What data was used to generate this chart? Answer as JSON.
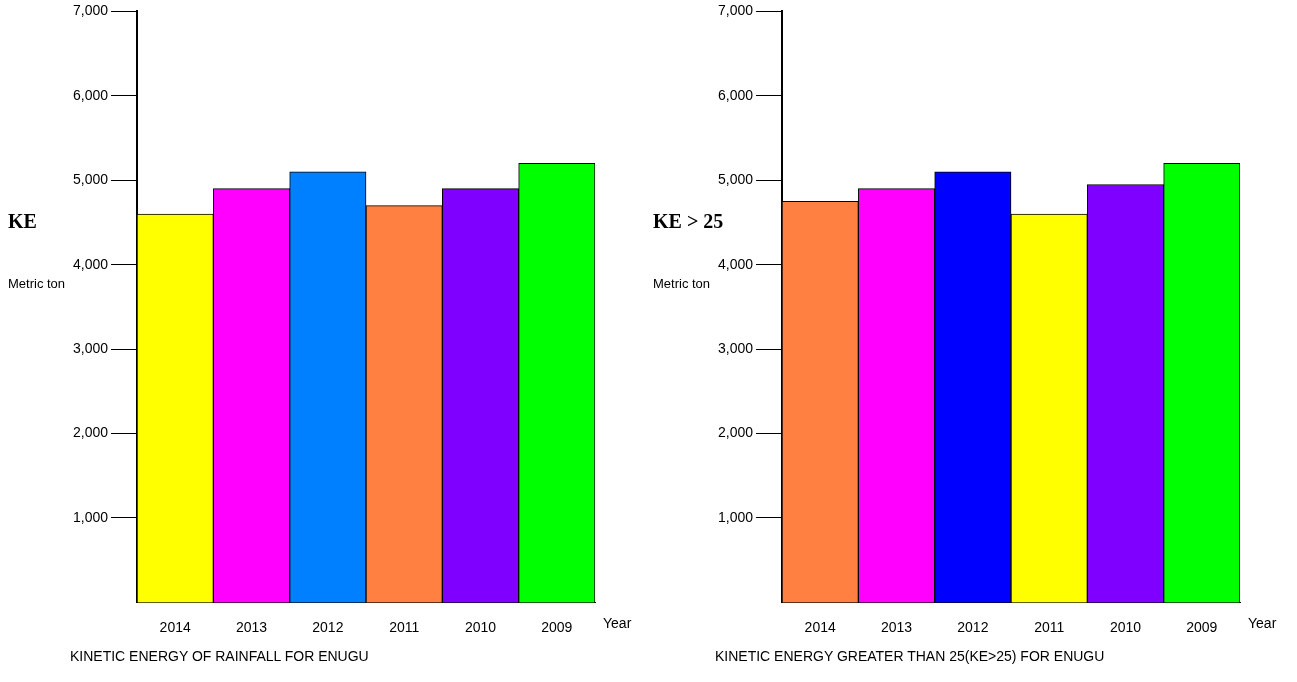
{
  "chart_data": [
    {
      "type": "bar",
      "title": "KINETIC ENERGY OF RAINFALL FOR ENUGU",
      "ylabel": "KE",
      "xlabel": "Year",
      "annotations": [
        "Metric ton"
      ],
      "categories": [
        "2014",
        "2013",
        "2012",
        "2011",
        "2010",
        "2009"
      ],
      "values": [
        4600,
        4900,
        5100,
        4700,
        4900,
        5200
      ],
      "colors": [
        "#ffff00",
        "#ff00ff",
        "#0080ff",
        "#ff8040",
        "#8000ff",
        "#00ff00"
      ],
      "ylim": [
        0,
        7000
      ],
      "yticks": [
        {
          "value": 1000,
          "label": "1,000"
        },
        {
          "value": 2000,
          "label": "2,000"
        },
        {
          "value": 3000,
          "label": "3,000"
        },
        {
          "value": 4000,
          "label": "4,000"
        },
        {
          "value": 5000,
          "label": "5,000"
        },
        {
          "value": 6000,
          "label": "6,000"
        },
        {
          "value": 7000,
          "label": "7,000"
        }
      ],
      "grid": false,
      "legend": false
    },
    {
      "type": "bar",
      "title": "KINETIC ENERGY GREATER THAN 25(KE>25) FOR ENUGU",
      "ylabel": "KE > 25",
      "xlabel": "Year",
      "annotations": [
        "Metric ton"
      ],
      "categories": [
        "2014",
        "2013",
        "2012",
        "2011",
        "2010",
        "2009"
      ],
      "values": [
        4750,
        4900,
        5100,
        4600,
        4950,
        5200
      ],
      "colors": [
        "#ff8040",
        "#ff00ff",
        "#0000ff",
        "#ffff00",
        "#8000ff",
        "#00ff00"
      ],
      "ylim": [
        0,
        7000
      ],
      "yticks": [
        {
          "value": 1000,
          "label": "1,000"
        },
        {
          "value": 2000,
          "label": "2,000"
        },
        {
          "value": 3000,
          "label": "3,000"
        },
        {
          "value": 4000,
          "label": "4,000"
        },
        {
          "value": 5000,
          "label": "5,000"
        },
        {
          "value": 6000,
          "label": "6,000"
        },
        {
          "value": 7000,
          "label": "7,000"
        }
      ],
      "grid": false,
      "legend": false
    }
  ]
}
